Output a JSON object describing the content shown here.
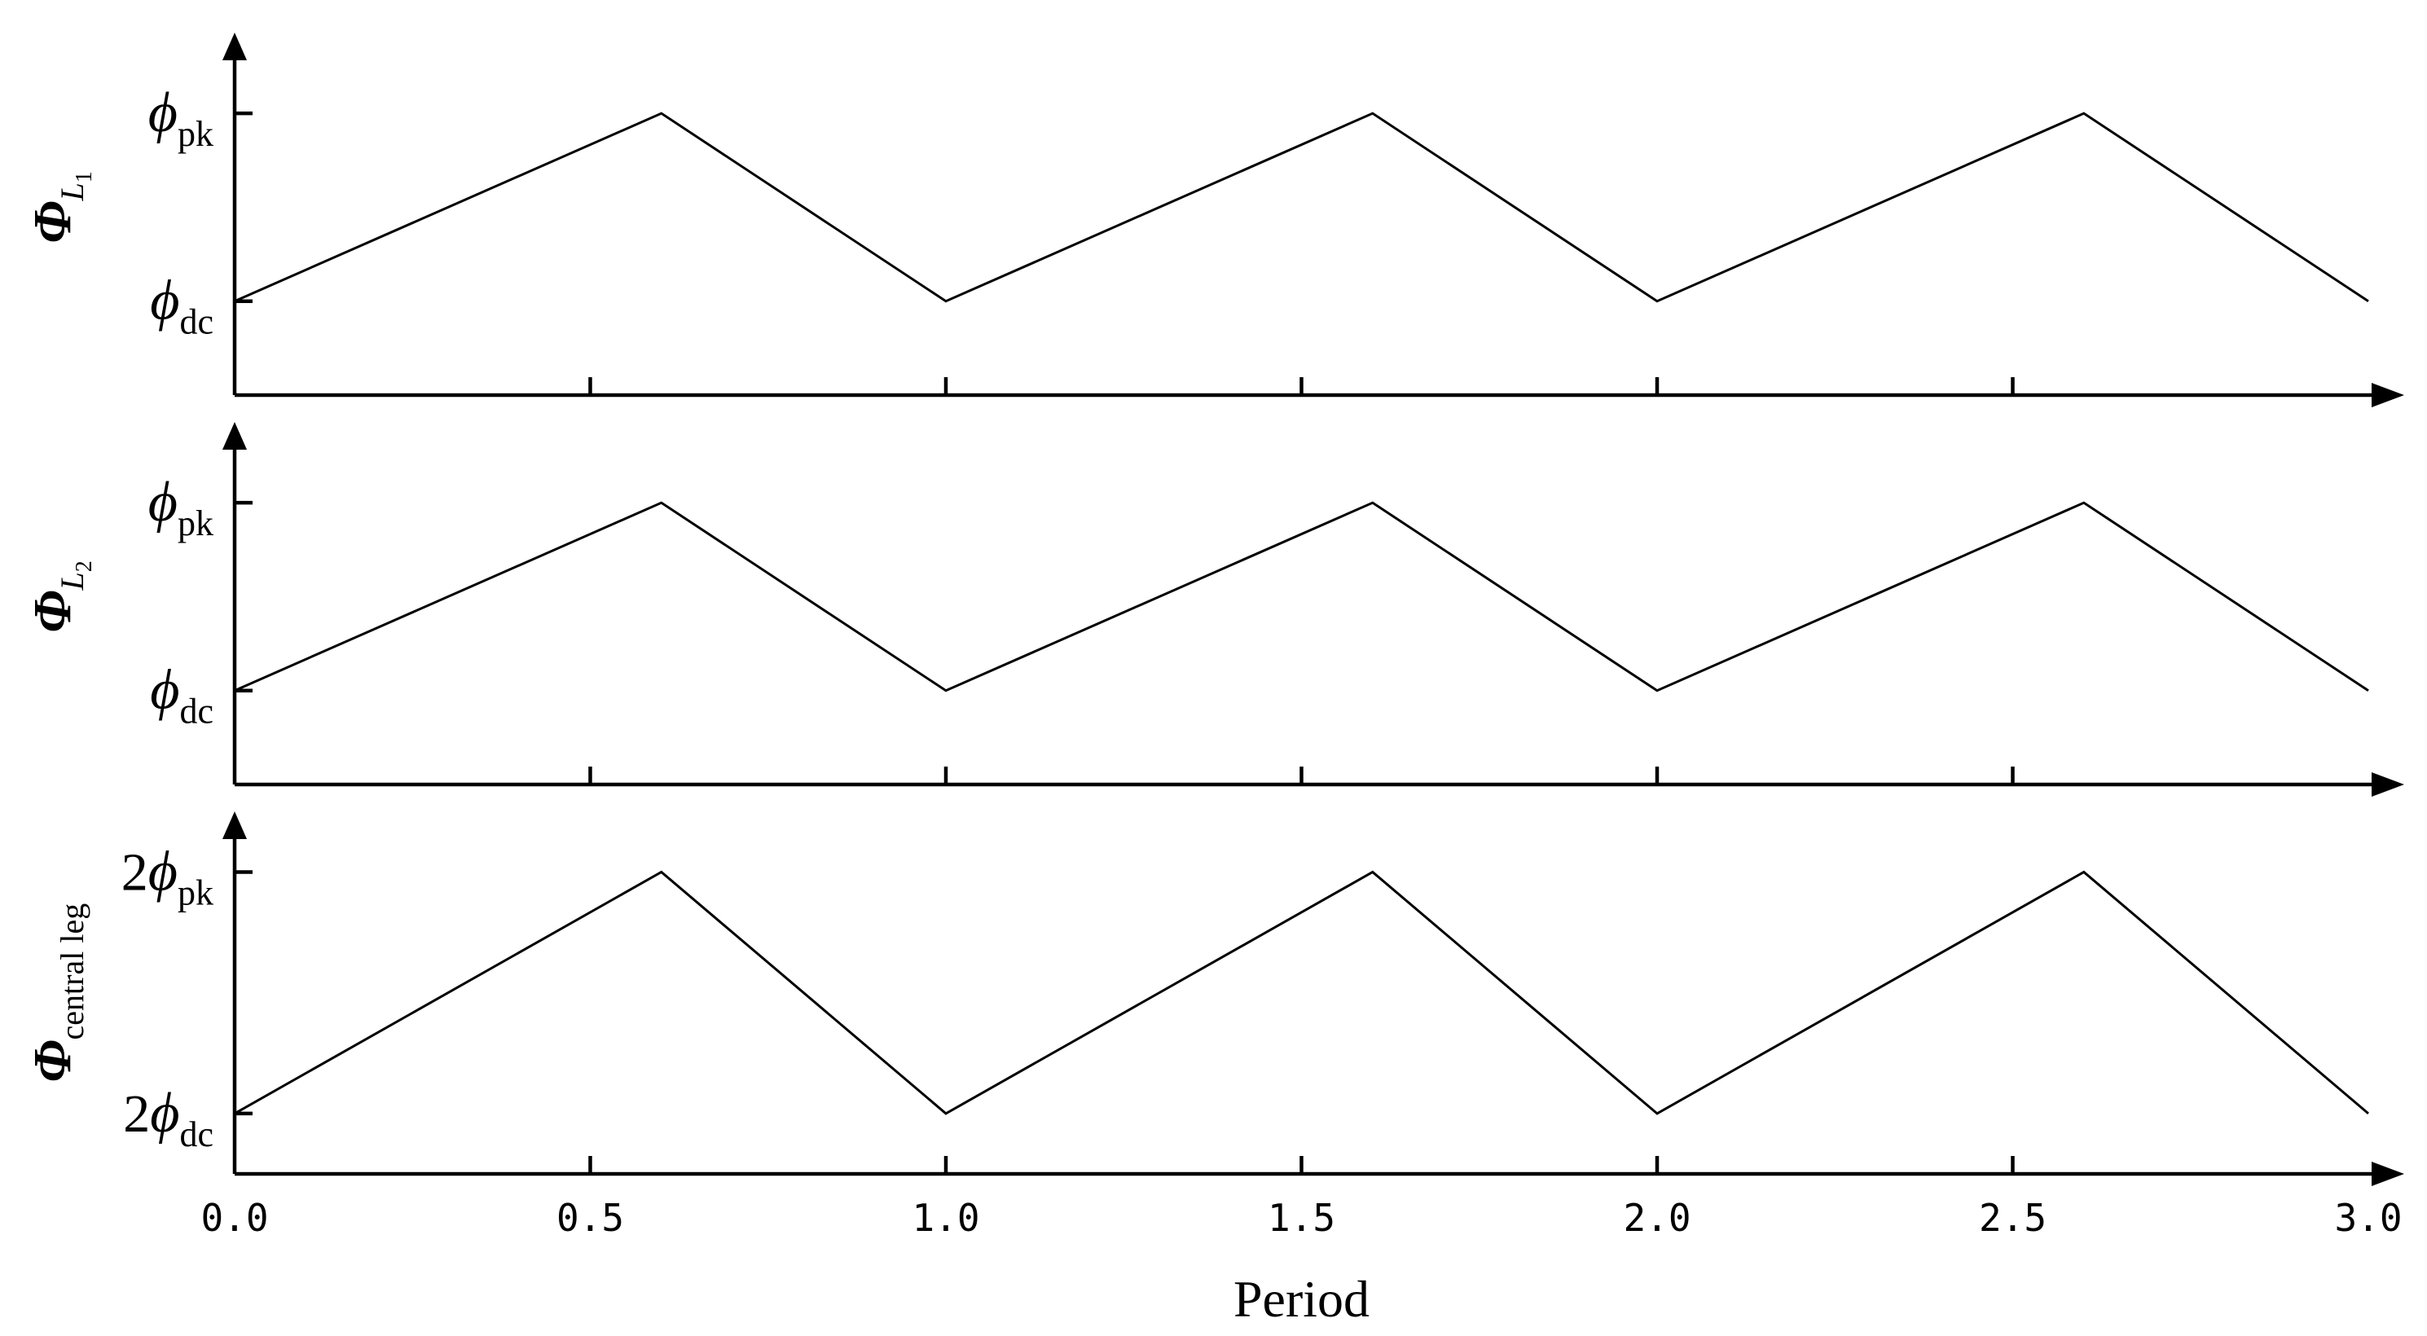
{
  "chart_data": [
    {
      "type": "line",
      "ylabel": {
        "main": "Φ",
        "sub": "L",
        "subsub": "1"
      },
      "y_ticks": [
        {
          "pre": "",
          "main": "ϕ",
          "sub": "pk",
          "level": "peak"
        },
        {
          "pre": "",
          "main": "ϕ",
          "sub": "dc",
          "level": "dc"
        }
      ],
      "levels": {
        "dc": 0,
        "peak": 1
      },
      "ylim": [
        -0.5,
        1.3
      ],
      "xlim": [
        0,
        3
      ],
      "x_ticks": [
        0.5,
        1.0,
        1.5,
        2.0,
        2.5
      ],
      "series": [
        {
          "x": [
            0.0,
            0.6,
            1.0,
            1.6,
            2.0,
            2.6,
            3.0
          ],
          "y": [
            0,
            1,
            0,
            1,
            0,
            1,
            0
          ]
        }
      ]
    },
    {
      "type": "line",
      "ylabel": {
        "main": "Φ",
        "sub": "L",
        "subsub": "2"
      },
      "y_ticks": [
        {
          "pre": "",
          "main": "ϕ",
          "sub": "pk",
          "level": "peak"
        },
        {
          "pre": "",
          "main": "ϕ",
          "sub": "dc",
          "level": "dc"
        }
      ],
      "levels": {
        "dc": 0,
        "peak": 1
      },
      "ylim": [
        -0.5,
        1.3
      ],
      "xlim": [
        0,
        3
      ],
      "x_ticks": [
        0.5,
        1.0,
        1.5,
        2.0,
        2.5
      ],
      "series": [
        {
          "x": [
            0.0,
            0.6,
            1.0,
            1.6,
            2.0,
            2.6,
            3.0
          ],
          "y": [
            0,
            1,
            0,
            1,
            0,
            1,
            0
          ]
        }
      ]
    },
    {
      "type": "line",
      "ylabel": {
        "main": "Φ",
        "sub": "central leg",
        "subsub": ""
      },
      "y_ticks": [
        {
          "pre": "2",
          "main": "ϕ",
          "sub": "pk",
          "level": "peak"
        },
        {
          "pre": "2",
          "main": "ϕ",
          "sub": "dc",
          "level": "dc"
        }
      ],
      "levels": {
        "dc": 0,
        "peak": 1
      },
      "ylim": [
        -0.25,
        1.15
      ],
      "xlim": [
        0,
        3
      ],
      "x_ticks": [
        0.5,
        1.0,
        1.5,
        2.0,
        2.5
      ],
      "x_tick_labels": [
        "0.0",
        "0.5",
        "1.0",
        "1.5",
        "2.0",
        "2.5",
        "3.0"
      ],
      "xlabel": "Period",
      "series": [
        {
          "x": [
            0.0,
            0.6,
            1.0,
            1.6,
            2.0,
            2.6,
            3.0
          ],
          "y": [
            0,
            1,
            0,
            1,
            0,
            1,
            0
          ]
        }
      ]
    }
  ]
}
